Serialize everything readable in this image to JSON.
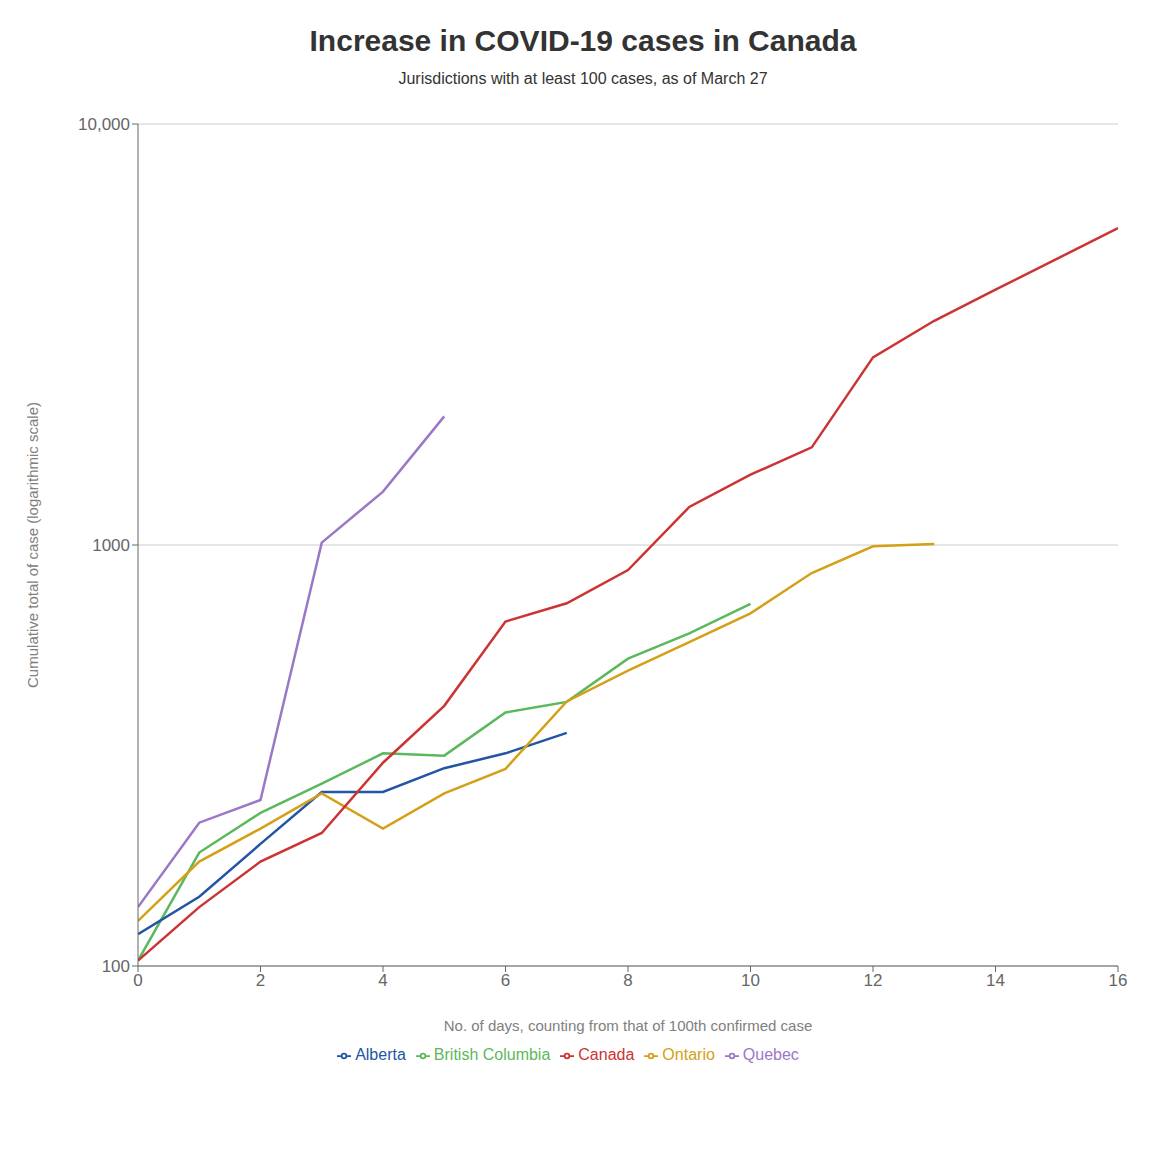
{
  "chart_data": {
    "type": "line",
    "title": "Increase in COVID-19 cases in Canada",
    "subtitle": "Jurisdictions with at least 100 cases, as of March 27",
    "xlabel": "No. of days, counting from that of 100th confirmed case",
    "ylabel": "Cumulative total of case (logarithmic scale)",
    "log": "y",
    "grid": "y",
    "legend": "bottom",
    "xlim": [
      0,
      16
    ],
    "xticks": [
      0,
      2,
      4,
      6,
      8,
      10,
      12,
      14,
      16
    ],
    "ylim": [
      100,
      10000
    ],
    "yticks": [
      100,
      1000,
      {
        "value": 10000,
        "label": "10,000"
      }
    ],
    "series": [
      {
        "name": "British Columbia",
        "color": "#5cb85c",
        "x": [
          0,
          1,
          2,
          3,
          4,
          5,
          6,
          7,
          8,
          9,
          10
        ],
        "values": [
          103,
          186,
          231,
          271,
          320,
          316,
          400,
          424,
          537,
          617,
          725
        ]
      },
      {
        "name": "Alberta",
        "color": "#2255a4",
        "x": [
          0,
          1,
          2,
          3,
          4,
          5,
          6,
          7
        ],
        "values": [
          119,
          146,
          195,
          259,
          259,
          295,
          320,
          358
        ]
      },
      {
        "name": "Ontario",
        "color": "#d4a017",
        "x": [
          0,
          1,
          2,
          3,
          4,
          5,
          6,
          7,
          8,
          9,
          10,
          11,
          12,
          13
        ],
        "values": [
          128,
          177,
          212,
          257,
          212,
          257,
          294,
          425,
          503,
          588,
          688,
          858,
          993,
          1005
        ]
      },
      {
        "name": "Quebec",
        "color": "#9b77c8",
        "x": [
          0,
          1,
          2,
          3,
          4,
          5
        ],
        "values": [
          138,
          219,
          248,
          1013,
          1339,
          2021
        ]
      },
      {
        "name": "Canada",
        "color": "#cc3333",
        "x": [
          0,
          1,
          2,
          3,
          4,
          5,
          6,
          7,
          8,
          9,
          10,
          11,
          12,
          13,
          14,
          16
        ],
        "values": [
          103,
          138,
          177,
          207,
          304,
          415,
          658,
          727,
          872,
          1231,
          1469,
          1706,
          2791,
          3409,
          4043,
          5655
        ]
      }
    ]
  }
}
